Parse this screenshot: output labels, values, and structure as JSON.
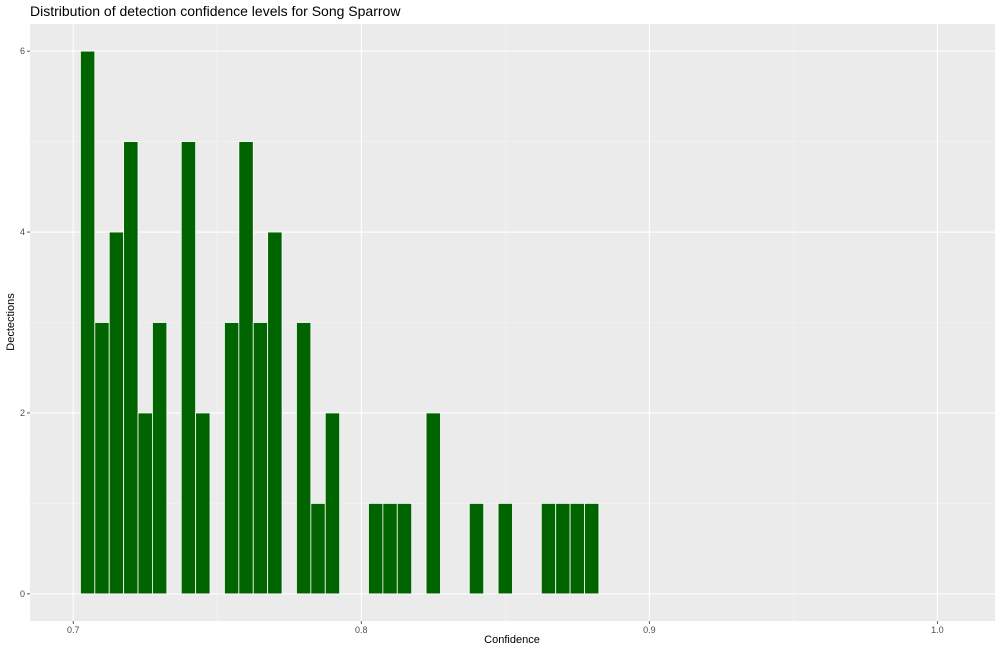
{
  "chart_data": {
    "type": "bar",
    "title": "Distribution of detection confidence levels for Song Sparrow",
    "xlabel": "Confidence",
    "ylabel": "Dectections",
    "xlim": [
      0.685,
      1.02
    ],
    "ylim": [
      -0.3,
      6.3
    ],
    "x_ticks": [
      "0.7",
      "0.8",
      "0.9",
      "1.0"
    ],
    "y_ticks": [
      "0",
      "2",
      "4",
      "6"
    ],
    "bin_width": 0.005,
    "bar_color": "#006400",
    "panel_background": "#ebebeb",
    "grid": true,
    "bins": [
      {
        "x": 0.705,
        "count": 6
      },
      {
        "x": 0.71,
        "count": 3
      },
      {
        "x": 0.715,
        "count": 4
      },
      {
        "x": 0.72,
        "count": 5
      },
      {
        "x": 0.725,
        "count": 2
      },
      {
        "x": 0.73,
        "count": 3
      },
      {
        "x": 0.74,
        "count": 5
      },
      {
        "x": 0.745,
        "count": 2
      },
      {
        "x": 0.755,
        "count": 3
      },
      {
        "x": 0.76,
        "count": 5
      },
      {
        "x": 0.765,
        "count": 3
      },
      {
        "x": 0.77,
        "count": 4
      },
      {
        "x": 0.78,
        "count": 3
      },
      {
        "x": 0.785,
        "count": 1
      },
      {
        "x": 0.79,
        "count": 2
      },
      {
        "x": 0.805,
        "count": 1
      },
      {
        "x": 0.81,
        "count": 1
      },
      {
        "x": 0.815,
        "count": 1
      },
      {
        "x": 0.825,
        "count": 2
      },
      {
        "x": 0.84,
        "count": 1
      },
      {
        "x": 0.85,
        "count": 1
      },
      {
        "x": 0.865,
        "count": 1
      },
      {
        "x": 0.87,
        "count": 1
      },
      {
        "x": 0.875,
        "count": 1
      },
      {
        "x": 0.88,
        "count": 1
      }
    ]
  }
}
